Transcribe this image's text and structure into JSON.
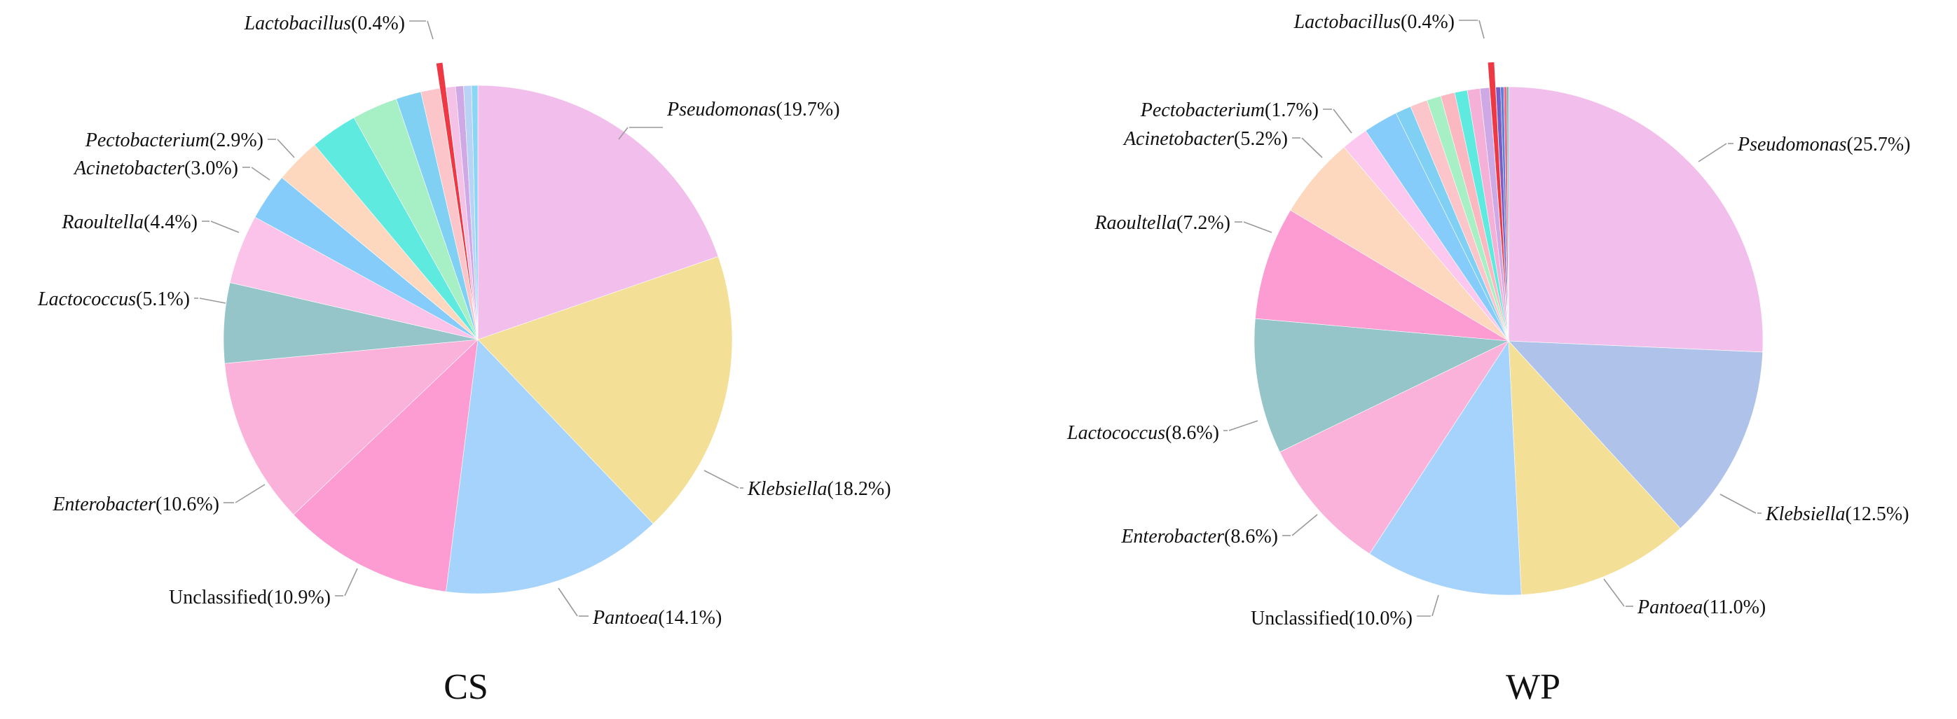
{
  "chart_data": [
    {
      "type": "pie",
      "title": "CS",
      "start": "12 o'clock",
      "direction": "clockwise",
      "slices": [
        {
          "label": "Pseudomonas",
          "value": 19.7,
          "display": "(19.7%)",
          "italic": true,
          "color": "#f2bfec"
        },
        {
          "label": "Klebsiella",
          "value": 18.2,
          "display": "(18.2%)",
          "italic": true,
          "color": "#f3df96"
        },
        {
          "label": "Pantoea",
          "value": 14.1,
          "display": "(14.1%)",
          "italic": true,
          "color": "#a5d3fb"
        },
        {
          "label": "Unclassified",
          "value": 10.9,
          "display": "(10.9%)",
          "italic": false,
          "color": "#fd9cd3"
        },
        {
          "label": "Enterobacter",
          "value": 10.6,
          "display": "(10.6%)",
          "italic": true,
          "color": "#fbb2da"
        },
        {
          "label": "Lactococcus",
          "value": 5.1,
          "display": "(5.1%)",
          "italic": true,
          "color": "#95c4c9"
        },
        {
          "label": "Raoultella",
          "value": 4.4,
          "display": "(4.4%)",
          "italic": true,
          "color": "#fcc3ea"
        },
        {
          "label": "Acinetobacter",
          "value": 3.0,
          "display": "(3.0%)",
          "italic": true,
          "color": "#86ccfa"
        },
        {
          "label": "Pectobacterium",
          "value": 2.9,
          "display": "(2.9%)",
          "italic": true,
          "color": "#fdd7be"
        },
        {
          "label": "",
          "value": 3.0,
          "color": "#5eeadf"
        },
        {
          "label": "",
          "value": 2.9,
          "color": "#a7efc4"
        },
        {
          "label": "",
          "value": 1.6,
          "color": "#7fd0f3"
        },
        {
          "label": "",
          "value": 1.2,
          "color": "#fbc5c9"
        },
        {
          "label": "Lactobacillus",
          "value": 0.4,
          "display": "(0.4%)",
          "italic": true,
          "color": "#ee3844",
          "exploded": true
        },
        {
          "label": "",
          "value": 0.6,
          "color": "#f5c2e7"
        },
        {
          "label": "",
          "value": 0.5,
          "color": "#cfa8e6"
        },
        {
          "label": "",
          "value": 0.5,
          "color": "#b9d3f6"
        },
        {
          "label": "",
          "value": 0.4,
          "color": "#8ad6f4"
        }
      ]
    },
    {
      "type": "pie",
      "title": "WP",
      "start": "12 o'clock",
      "direction": "clockwise",
      "slices": [
        {
          "label": "Pseudomonas",
          "value": 25.7,
          "display": "(25.7%)",
          "italic": true,
          "color": "#f2bfec"
        },
        {
          "label": "Klebsiella",
          "value": 12.5,
          "display": "(12.5%)",
          "italic": true,
          "color": "#afc2e9"
        },
        {
          "label": "Pantoea",
          "value": 11.0,
          "display": "(11.0%)",
          "italic": true,
          "color": "#f3df96"
        },
        {
          "label": "Unclassified",
          "value": 10.0,
          "display": "(10.0%)",
          "italic": false,
          "color": "#a5d3fb"
        },
        {
          "label": "Enterobacter",
          "value": 8.6,
          "display": "(8.6%)",
          "italic": true,
          "color": "#fbb2da"
        },
        {
          "label": "Lactococcus",
          "value": 8.6,
          "display": "(8.6%)",
          "italic": true,
          "color": "#95c4c9"
        },
        {
          "label": "Raoultella",
          "value": 7.2,
          "display": "(7.2%)",
          "italic": true,
          "color": "#fd9cd3"
        },
        {
          "label": "Acinetobacter",
          "value": 5.2,
          "display": "(5.2%)",
          "italic": true,
          "color": "#fdd7be"
        },
        {
          "label": "Pectobacterium",
          "value": 1.7,
          "display": "(1.7%)",
          "italic": true,
          "color": "#fcc8f0"
        },
        {
          "label": "",
          "value": 2.2,
          "color": "#86ccfa"
        },
        {
          "label": "",
          "value": 1.0,
          "color": "#7fd0f3"
        },
        {
          "label": "",
          "value": 1.1,
          "color": "#fbc5c9"
        },
        {
          "label": "",
          "value": 0.9,
          "color": "#a7efc4"
        },
        {
          "label": "",
          "value": 0.9,
          "color": "#fbb8c0"
        },
        {
          "label": "",
          "value": 0.8,
          "color": "#5eeadf"
        },
        {
          "label": "",
          "value": 0.8,
          "color": "#f5b0d8"
        },
        {
          "label": "",
          "value": 0.6,
          "color": "#cfa8e6"
        },
        {
          "label": "Lactobacillus",
          "value": 0.4,
          "display": "(0.4%)",
          "italic": true,
          "color": "#ee3844",
          "exploded": true
        },
        {
          "label": "",
          "value": 0.3,
          "color": "#7b5cc6"
        },
        {
          "label": "",
          "value": 0.2,
          "color": "#5b7fd6"
        },
        {
          "label": "",
          "value": 0.2,
          "color": "#f06a8c"
        },
        {
          "label": "",
          "value": 0.1,
          "color": "#2dbf9b"
        }
      ]
    }
  ]
}
